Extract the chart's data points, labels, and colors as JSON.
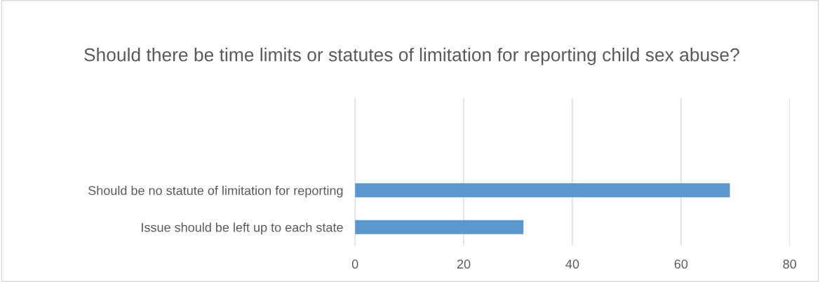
{
  "chart_data": {
    "type": "bar",
    "orientation": "horizontal",
    "title": "Should there be time limits or statutes of limitation for reporting child sex abuse?",
    "categories": [
      null,
      null,
      "Should be no statute of limitation for reporting",
      "Issue should be left up to each state"
    ],
    "values": [
      null,
      null,
      69,
      31
    ],
    "color": "#5b96cc",
    "xlim": [
      0,
      80
    ],
    "xticks": [
      0,
      20,
      40,
      60,
      80
    ],
    "grid": "x",
    "legend": false
  }
}
